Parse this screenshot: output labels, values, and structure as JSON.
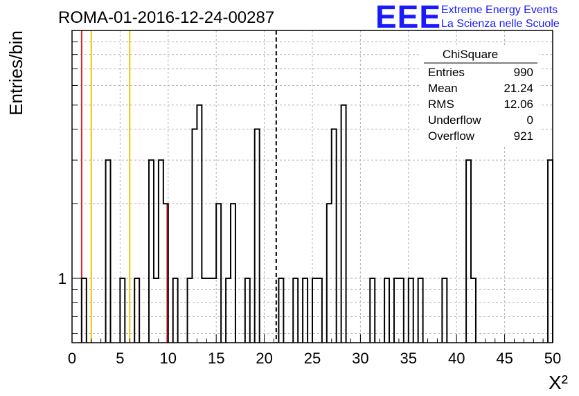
{
  "title": "ROMA-01-2016-12-24-00287",
  "logo": {
    "letters": "EEE",
    "line1": "Extreme Energy Events",
    "line2": "La Scienza nelle Scuole",
    "color": "#1a1aff"
  },
  "stats_box": {
    "name": "ChiSquare",
    "rows": [
      {
        "label": "Entries",
        "value": "990"
      },
      {
        "label": "Mean",
        "value": "21.24"
      },
      {
        "label": "RMS",
        "value": "12.06"
      },
      {
        "label": "Underflow",
        "value": "0"
      },
      {
        "label": "Overflow",
        "value": "921"
      }
    ]
  },
  "chart_data": {
    "type": "bar",
    "histogram": "step",
    "title": "ROMA-01-2016-12-24-00287",
    "xlabel": "X²",
    "ylabel": "Entries/bin",
    "xlim": [
      0,
      50
    ],
    "ylim": [
      0.55,
      10
    ],
    "yscale": "log",
    "grid": true,
    "bin_width": 0.5,
    "x_ticks": [
      "0",
      "5",
      "10",
      "15",
      "20",
      "25",
      "30",
      "35",
      "40",
      "45",
      "50"
    ],
    "y_ticks": [
      "1"
    ],
    "bins": [
      {
        "x": 1.0,
        "count": 1
      },
      {
        "x": 3.5,
        "count": 3
      },
      {
        "x": 5.0,
        "count": 1
      },
      {
        "x": 6.5,
        "count": 1
      },
      {
        "x": 8.0,
        "count": 3
      },
      {
        "x": 8.5,
        "count": 1
      },
      {
        "x": 9.0,
        "count": 3
      },
      {
        "x": 9.5,
        "count": 2
      },
      {
        "x": 10.5,
        "count": 1
      },
      {
        "x": 12.0,
        "count": 1
      },
      {
        "x": 12.5,
        "count": 4
      },
      {
        "x": 13.0,
        "count": 5
      },
      {
        "x": 13.5,
        "count": 1
      },
      {
        "x": 14.0,
        "count": 1
      },
      {
        "x": 14.5,
        "count": 1
      },
      {
        "x": 15.0,
        "count": 2
      },
      {
        "x": 16.0,
        "count": 1
      },
      {
        "x": 16.5,
        "count": 2
      },
      {
        "x": 18.0,
        "count": 1
      },
      {
        "x": 19.0,
        "count": 4
      },
      {
        "x": 21.5,
        "count": 1
      },
      {
        "x": 23.0,
        "count": 1
      },
      {
        "x": 24.0,
        "count": 1
      },
      {
        "x": 25.0,
        "count": 1
      },
      {
        "x": 25.5,
        "count": 1
      },
      {
        "x": 26.5,
        "count": 2
      },
      {
        "x": 27.0,
        "count": 4
      },
      {
        "x": 28.0,
        "count": 5
      },
      {
        "x": 31.0,
        "count": 1
      },
      {
        "x": 32.5,
        "count": 1
      },
      {
        "x": 33.5,
        "count": 1
      },
      {
        "x": 34.0,
        "count": 1
      },
      {
        "x": 35.0,
        "count": 1
      },
      {
        "x": 36.0,
        "count": 1
      },
      {
        "x": 38.5,
        "count": 1
      },
      {
        "x": 41.0,
        "count": 3
      },
      {
        "x": 41.5,
        "count": 1
      },
      {
        "x": 49.5,
        "count": 3
      }
    ],
    "vertical_lines": [
      {
        "x": 1.0,
        "color": "#e02020",
        "style": "solid"
      },
      {
        "x": 2.0,
        "color": "#f5c400",
        "style": "solid"
      },
      {
        "x": 6.0,
        "color": "#f5c400",
        "style": "solid"
      },
      {
        "x": 9.9,
        "color": "#e02020",
        "style": "solid",
        "to_count": 2
      },
      {
        "x": 21.24,
        "color": "#000000",
        "style": "dashed"
      }
    ]
  }
}
